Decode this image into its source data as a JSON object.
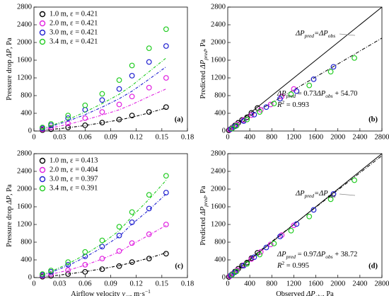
{
  "chart_data": [
    {
      "type": "scatter",
      "x": [
        0.01,
        0.02,
        0.04,
        0.06,
        0.08,
        0.1,
        0.115,
        0.135,
        0.155
      ],
      "xlim": [
        0,
        0.18
      ],
      "xticks": [
        0,
        0.03,
        0.06,
        0.09,
        0.12,
        0.15,
        0.18
      ],
      "ylim": [
        0,
        2800
      ],
      "yticks": [
        0,
        400,
        800,
        1200,
        1600,
        2000,
        2400,
        2800
      ],
      "ylabel": {
        "parts": [
          {
            "t": "Pressure drop "
          },
          {
            "t": "ΔP",
            "i": true
          },
          {
            "t": ", Pa"
          }
        ]
      },
      "panel_label": "(a)",
      "legend": "upper left",
      "series": [
        {
          "name": "1.0 m, ε = 0.421",
          "color": "#000000",
          "values": [
            20,
            40,
            80,
            130,
            190,
            260,
            350,
            430,
            540
          ],
          "fit": [
            15,
            35,
            75,
            125,
            185,
            250,
            310,
            410,
            520
          ]
        },
        {
          "name": "2.0 m, ε = 0.421",
          "color": "#e020e0",
          "values": [
            40,
            80,
            170,
            290,
            430,
            600,
            780,
            980,
            1200
          ],
          "fit": [
            30,
            70,
            150,
            250,
            360,
            480,
            600,
            780,
            950
          ]
        },
        {
          "name": "3.0 m, ε = 0.421",
          "color": "#2020d0",
          "values": [
            60,
            130,
            290,
            480,
            700,
            950,
            1250,
            1560,
            1920
          ],
          "fit": [
            45,
            105,
            225,
            370,
            540,
            730,
            900,
            1170,
            1450
          ]
        },
        {
          "name": "3.4 m, ε = 0.421",
          "color": "#22cc22",
          "values": [
            80,
            160,
            350,
            580,
            840,
            1150,
            1480,
            1870,
            2300
          ],
          "fit": [
            55,
            120,
            260,
            430,
            620,
            830,
            1030,
            1340,
            1650
          ]
        }
      ]
    },
    {
      "type": "scatter",
      "xlim": [
        0,
        2800
      ],
      "xticks": [
        0,
        400,
        800,
        1200,
        1600,
        2000,
        2400,
        2800
      ],
      "ylim": [
        0,
        2800
      ],
      "yticks": [
        0,
        400,
        800,
        1200,
        1600,
        2000,
        2400,
        2800
      ],
      "ylabel": {
        "parts": [
          {
            "t": "Predicted "
          },
          {
            "t": "ΔP",
            "i": true
          },
          {
            "t": "pred",
            "sub": true,
            "i": true
          },
          {
            "t": ", Pa"
          }
        ]
      },
      "panel_label": "(b)",
      "reference_lines": [
        {
          "x": [
            0,
            2800
          ],
          "y": [
            0,
            2800
          ],
          "dash": "solid"
        },
        {
          "x": [
            0,
            2800
          ],
          "y": [
            54.7,
            2098.7
          ],
          "dash": "dashdot"
        }
      ],
      "annotations": [
        {
          "parts": [
            {
              "t": "ΔP",
              "i": true
            },
            {
              "t": "pred",
              "sub": true,
              "i": true
            },
            {
              "t": "=ΔP",
              "i": true
            },
            {
              "t": "obs",
              "sub": true,
              "i": true
            }
          ]
        },
        {
          "parts": [
            {
              "t": "ΔP",
              "i": true
            },
            {
              "t": "pred",
              "sub": true,
              "i": true
            },
            {
              "t": " = 0.73"
            },
            {
              "t": "ΔP",
              "i": true
            },
            {
              "t": "obs",
              "sub": true,
              "i": true
            },
            {
              "t": " + 54.70"
            }
          ]
        },
        {
          "parts": [
            {
              "t": "R",
              "i": true
            },
            {
              "t": "2",
              "sup": true
            },
            {
              "t": " = 0.993"
            }
          ]
        }
      ],
      "series": [
        {
          "color": "#000000",
          "x": [
            20,
            40,
            80,
            130,
            190,
            260,
            350,
            430,
            540
          ],
          "values": [
            15,
            35,
            75,
            125,
            185,
            250,
            310,
            410,
            520
          ]
        },
        {
          "color": "#e020e0",
          "x": [
            40,
            80,
            170,
            290,
            430,
            600,
            780,
            980,
            1200
          ],
          "values": [
            30,
            70,
            150,
            250,
            360,
            480,
            600,
            780,
            950
          ]
        },
        {
          "color": "#2020d0",
          "x": [
            60,
            130,
            290,
            480,
            700,
            950,
            1250,
            1560,
            1920
          ],
          "values": [
            45,
            105,
            225,
            370,
            540,
            730,
            900,
            1170,
            1450
          ]
        },
        {
          "color": "#22cc22",
          "x": [
            80,
            160,
            350,
            580,
            840,
            1150,
            1480,
            1870,
            2300
          ],
          "values": [
            55,
            120,
            260,
            430,
            620,
            830,
            1030,
            1340,
            1650
          ]
        }
      ]
    },
    {
      "type": "scatter",
      "x": [
        0.01,
        0.02,
        0.04,
        0.06,
        0.08,
        0.1,
        0.115,
        0.135,
        0.155
      ],
      "xlim": [
        0,
        0.18
      ],
      "xticks": [
        0,
        0.03,
        0.06,
        0.09,
        0.12,
        0.15,
        0.18
      ],
      "ylim": [
        0,
        2800
      ],
      "yticks": [
        0,
        400,
        800,
        1200,
        1600,
        2000,
        2400,
        2800
      ],
      "ylabel": {
        "parts": [
          {
            "t": "Pressure drop "
          },
          {
            "t": "ΔP",
            "i": true
          },
          {
            "t": ", Pa"
          }
        ]
      },
      "xlabel": {
        "parts": [
          {
            "t": "Airflow velocity "
          },
          {
            "t": "v",
            "i": true
          },
          {
            "t": "ar",
            "sub": true,
            "i": true
          },
          {
            "t": ", m·s"
          },
          {
            "t": "−1",
            "sup": true
          }
        ]
      },
      "panel_label": "(c)",
      "legend": "upper left",
      "series": [
        {
          "name": "1.0 m, ε = 0.413",
          "color": "#000000",
          "values": [
            20,
            40,
            80,
            130,
            190,
            260,
            350,
            430,
            540
          ],
          "fit": [
            15,
            35,
            80,
            135,
            200,
            270,
            340,
            440,
            560
          ]
        },
        {
          "name": "2.0 m, ε = 0.404",
          "color": "#e020e0",
          "values": [
            40,
            80,
            170,
            290,
            430,
            600,
            780,
            980,
            1200
          ],
          "fit": [
            35,
            75,
            165,
            280,
            420,
            580,
            750,
            960,
            1180
          ]
        },
        {
          "name": "3.0 m, ε = 0.397",
          "color": "#2020d0",
          "values": [
            60,
            130,
            290,
            480,
            700,
            950,
            1250,
            1560,
            1920
          ],
          "fit": [
            55,
            120,
            270,
            460,
            680,
            930,
            1210,
            1530,
            1890
          ]
        },
        {
          "name": "3.4 m, ε = 0.391",
          "color": "#22cc22",
          "values": [
            80,
            160,
            350,
            580,
            840,
            1150,
            1480,
            1870,
            2300
          ],
          "fit": [
            65,
            140,
            310,
            520,
            770,
            1060,
            1380,
            1770,
            2200
          ]
        }
      ]
    },
    {
      "type": "scatter",
      "xlim": [
        0,
        2800
      ],
      "xticks": [
        0,
        400,
        800,
        1200,
        1600,
        2000,
        2400,
        2800
      ],
      "ylim": [
        0,
        2800
      ],
      "yticks": [
        0,
        400,
        800,
        1200,
        1600,
        2000,
        2400,
        2800
      ],
      "ylabel": {
        "parts": [
          {
            "t": "Predicted "
          },
          {
            "t": "ΔP",
            "i": true
          },
          {
            "t": "pred",
            "sub": true,
            "i": true
          },
          {
            "t": ", Pa"
          }
        ]
      },
      "xlabel": {
        "parts": [
          {
            "t": "Observed "
          },
          {
            "t": "ΔP",
            "i": true
          },
          {
            "t": "obs",
            "sub": true,
            "i": true
          },
          {
            "t": ", Pa"
          }
        ]
      },
      "panel_label": "(d)",
      "reference_lines": [
        {
          "x": [
            0,
            2800
          ],
          "y": [
            0,
            2800
          ],
          "dash": "solid"
        },
        {
          "x": [
            0,
            2800
          ],
          "y": [
            38.72,
            2754.72
          ],
          "dash": "dashdot"
        }
      ],
      "annotations": [
        {
          "parts": [
            {
              "t": "ΔP",
              "i": true
            },
            {
              "t": "pred",
              "sub": true,
              "i": true
            },
            {
              "t": "=ΔP",
              "i": true
            },
            {
              "t": "obs",
              "sub": true,
              "i": true
            }
          ]
        },
        {
          "parts": [
            {
              "t": "ΔP",
              "i": true
            },
            {
              "t": "pred",
              "sub": true,
              "i": true
            },
            {
              "t": " = 0.97"
            },
            {
              "t": "ΔP",
              "i": true
            },
            {
              "t": "obs",
              "sub": true,
              "i": true
            },
            {
              "t": " + 38.72"
            }
          ]
        },
        {
          "parts": [
            {
              "t": "R",
              "i": true
            },
            {
              "t": "2",
              "sup": true
            },
            {
              "t": " = 0.995"
            }
          ]
        }
      ],
      "series": [
        {
          "color": "#000000",
          "x": [
            20,
            40,
            80,
            130,
            190,
            260,
            350,
            430,
            540
          ],
          "values": [
            15,
            35,
            80,
            135,
            200,
            270,
            340,
            440,
            560
          ]
        },
        {
          "color": "#e020e0",
          "x": [
            40,
            80,
            170,
            290,
            430,
            600,
            780,
            980,
            1200
          ],
          "values": [
            35,
            75,
            165,
            280,
            420,
            580,
            750,
            960,
            1180
          ]
        },
        {
          "color": "#2020d0",
          "x": [
            60,
            130,
            290,
            480,
            700,
            950,
            1250,
            1560,
            1920
          ],
          "values": [
            55,
            120,
            270,
            460,
            680,
            930,
            1210,
            1530,
            1890
          ]
        },
        {
          "color": "#22cc22",
          "x": [
            80,
            160,
            350,
            580,
            840,
            1150,
            1480,
            1870,
            2300
          ],
          "values": [
            65,
            140,
            310,
            520,
            770,
            1060,
            1380,
            1770,
            2200
          ]
        }
      ]
    }
  ]
}
